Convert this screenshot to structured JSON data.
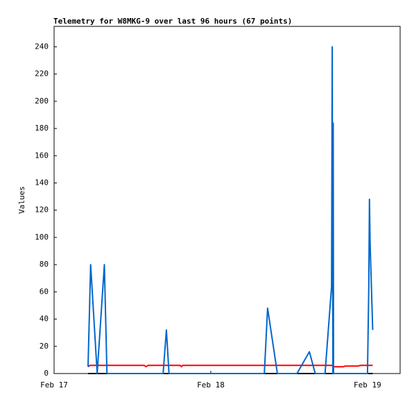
{
  "chart_data": {
    "type": "line",
    "title": "Telemetry for W8MKG-9 over last 96 hours (67 points)",
    "y_label": "Values",
    "xlim": [
      0,
      53
    ],
    "ylim": [
      0,
      255
    ],
    "xticks": [
      {
        "value": 0,
        "label": "Feb 17"
      },
      {
        "value": 24,
        "label": "Feb 18"
      },
      {
        "value": 48,
        "label": "Feb 19"
      }
    ],
    "yticks": [
      0,
      20,
      40,
      60,
      80,
      100,
      120,
      140,
      160,
      180,
      200,
      220,
      240
    ],
    "grid": false,
    "series": [
      {
        "color": "#000000",
        "x": [
          5.2,
          48.8
        ],
        "values": [
          0,
          0
        ]
      },
      {
        "color": "#ff0000",
        "x": [
          5.2,
          5.5,
          13.8,
          14.1,
          14.4,
          19.3,
          19.5,
          19.7,
          42.5,
          42.9,
          44.3,
          44.6,
          46.6,
          46.9,
          48.8
        ],
        "values": [
          5,
          6,
          6,
          5,
          6,
          6,
          5,
          6,
          6,
          5,
          5,
          5.5,
          5.5,
          6,
          6
        ]
      },
      {
        "color": "#0066cc",
        "x": [
          5.2,
          5.6,
          6.6,
          7.7,
          8.1,
          16.7,
          17.2,
          17.6,
          32.2,
          32.7,
          34.2,
          37.2,
          39.1,
          40.0,
          41.5,
          42.5,
          42.6,
          42.7,
          42.75,
          42.8,
          48.0,
          48.2,
          48.3,
          48.4,
          48.8
        ],
        "values": [
          5,
          80,
          0,
          80,
          0,
          0,
          32,
          0,
          0,
          48,
          0,
          0,
          16,
          0,
          0,
          64,
          240,
          0,
          184,
          0,
          0,
          64,
          128,
          96,
          32
        ]
      }
    ]
  }
}
